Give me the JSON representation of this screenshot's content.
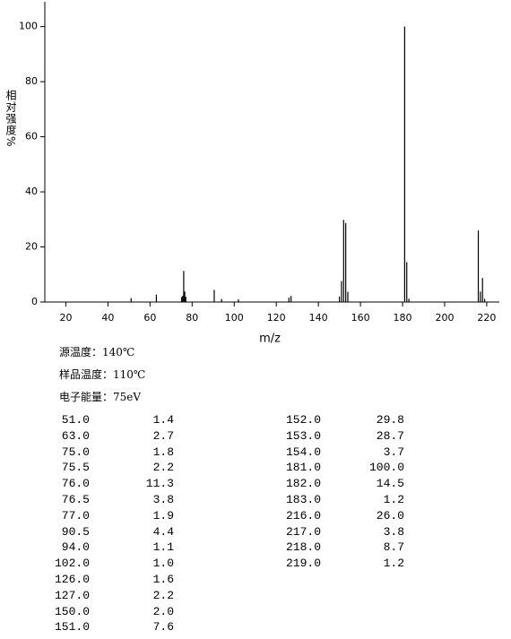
{
  "chart_data": {
    "type": "bar",
    "x_label": "m/z",
    "y_label": "相对强度%",
    "x": [
      51.0,
      63.0,
      75.0,
      75.5,
      76.0,
      76.5,
      77.0,
      90.5,
      94.0,
      102.0,
      126.0,
      127.0,
      150.0,
      151.0,
      152.0,
      153.0,
      154.0,
      181.0,
      182.0,
      183.0,
      216.0,
      217.0,
      218.0,
      219.0
    ],
    "values": [
      1.4,
      2.7,
      1.8,
      2.2,
      11.3,
      3.8,
      1.9,
      4.4,
      1.1,
      1.0,
      1.6,
      2.2,
      2.0,
      7.6,
      29.8,
      28.7,
      3.7,
      100.0,
      14.5,
      1.2,
      26.0,
      3.8,
      8.7,
      1.2
    ],
    "color": "#000000",
    "xlim": [
      10,
      226
    ],
    "xticks": [
      20,
      40,
      60,
      80,
      100,
      120,
      140,
      160,
      180,
      200,
      220
    ],
    "ylim": [
      0,
      109
    ],
    "yticks": [
      0,
      20,
      40,
      60,
      80,
      100
    ]
  },
  "info": [
    "源温度：140℃",
    "样品温度：110℃",
    "电子能量：75eV"
  ],
  "peak_table": {
    "left": [
      [
        "51.0",
        "1.4"
      ],
      [
        "63.0",
        "2.7"
      ],
      [
        "75.0",
        "1.8"
      ],
      [
        "75.5",
        "2.2"
      ],
      [
        "76.0",
        "11.3"
      ],
      [
        "76.5",
        "3.8"
      ],
      [
        "77.0",
        "1.9"
      ],
      [
        "90.5",
        "4.4"
      ],
      [
        "94.0",
        "1.1"
      ],
      [
        "102.0",
        "1.0"
      ],
      [
        "126.0",
        "1.6"
      ],
      [
        "127.0",
        "2.2"
      ],
      [
        "150.0",
        "2.0"
      ],
      [
        "151.0",
        "7.6"
      ]
    ],
    "right": [
      [
        "152.0",
        "29.8"
      ],
      [
        "153.0",
        "28.7"
      ],
      [
        "154.0",
        "3.7"
      ],
      [
        "181.0",
        "100.0"
      ],
      [
        "182.0",
        "14.5"
      ],
      [
        "183.0",
        "1.2"
      ],
      [
        "216.0",
        "26.0"
      ],
      [
        "217.0",
        "3.8"
      ],
      [
        "218.0",
        "8.7"
      ],
      [
        "219.0",
        "1.2"
      ]
    ]
  }
}
